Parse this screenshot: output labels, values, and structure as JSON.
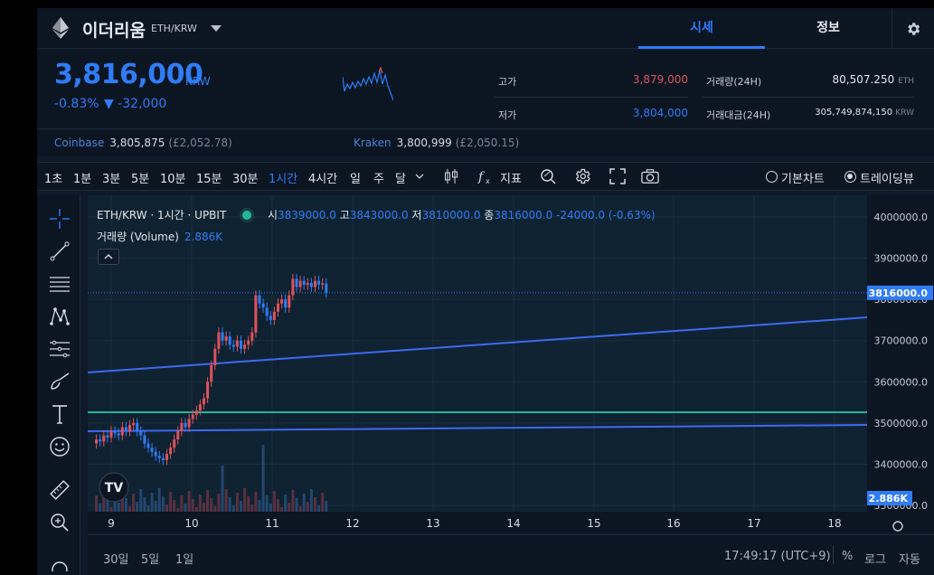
{
  "header": {
    "coin_name": "이더리움",
    "pair": "ETH/KRW",
    "tabs": [
      {
        "label": "시세"
      },
      {
        "label": "정보"
      }
    ]
  },
  "price": {
    "current": "3,816,000",
    "unit": "KRW",
    "change_pct": "-0.83%",
    "change_amt": "▼ -32,000"
  },
  "stats": {
    "high_label": "고가",
    "high": "3,879,000",
    "low_label": "저가",
    "low": "3,804,000",
    "volume_label": "거래량(24H)",
    "volume": "80,507.250",
    "volume_unit": "ETH",
    "amount_label": "거래대금(24H)",
    "amount": "305,749,874,150",
    "amount_unit": "KRW"
  },
  "exchanges": [
    {
      "name": "Coinbase",
      "value": "3,805,875",
      "sub": "(£2,052.78)"
    },
    {
      "name": "Kraken",
      "value": "3,800,999",
      "sub": "(£2,050.15)"
    }
  ],
  "toolbar": {
    "timeframes": [
      "1초",
      "1분",
      "3분",
      "5분",
      "10분",
      "15분",
      "30분",
      "1시간",
      "4시간",
      "일",
      "주",
      "달"
    ],
    "active_timeframe": "1시간",
    "indicator_label": "지표",
    "basic_chart": "기본차트",
    "trading_view": "트레이딩뷰"
  },
  "legend": {
    "symbol": "ETH/KRW · 1시간 · UPBIT",
    "o_label": "시",
    "o": "3839000.0",
    "h_label": "고",
    "h": "3843000.0",
    "l_label": "저",
    "l": "3810000.0",
    "c_label": "종",
    "c": "3816000.0",
    "chg": "-24000.0 (-0.63%)",
    "volume_label": "거래량 (Volume)",
    "volume_value": "2.886K"
  },
  "axis": {
    "price_ticks": [
      "4000000.0",
      "3900000.0",
      "3800000.0",
      "3700000.0",
      "3600000.0",
      "3500000.0",
      "3400000.0",
      "3300000.0"
    ],
    "current_price_tag": "3816000.0",
    "volume_tag": "2.886K",
    "date_ticks": [
      "9",
      "10",
      "11",
      "12",
      "13",
      "14",
      "15",
      "16",
      "17",
      "18"
    ]
  },
  "bottom": {
    "ranges": [
      "30일",
      "5일",
      "1일"
    ],
    "time": "17:49:17 (UTC+9)",
    "pct": "%",
    "log": "로그",
    "auto": "자동"
  },
  "colors": {
    "up": "#e0525b",
    "down": "#2f7cf6",
    "trend_line": "#3d6af0",
    "horizontal_line": "#23b59a"
  }
}
